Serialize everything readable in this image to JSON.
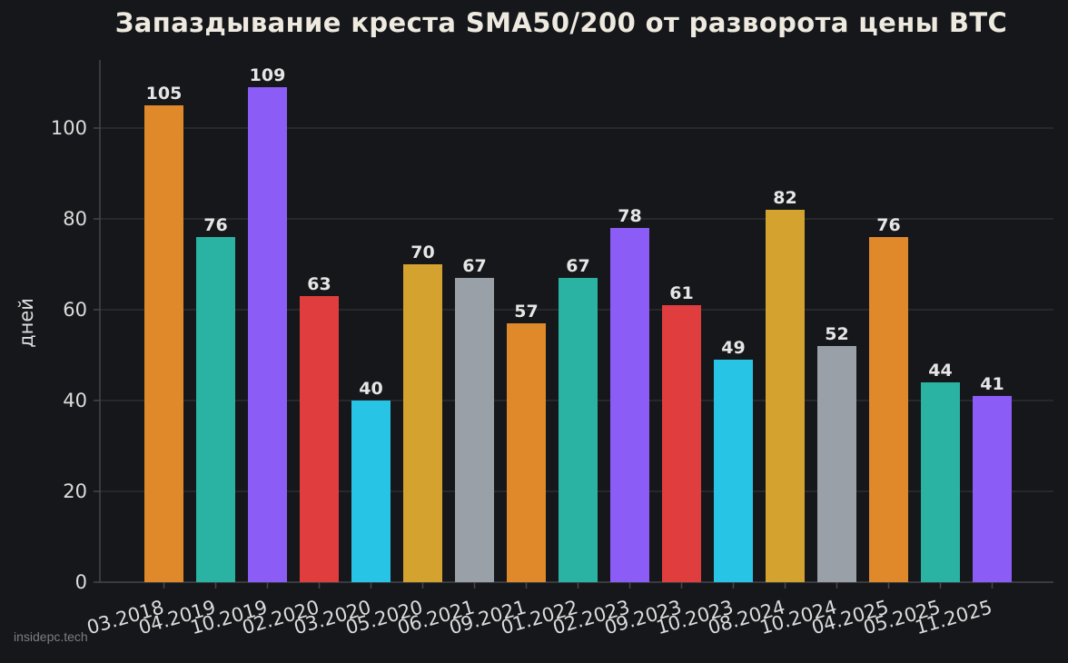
{
  "chart_data": {
    "type": "bar",
    "title": "Запаздывание креста SMA50/200 от разворота цены BTC",
    "xlabel": "",
    "ylabel": "дней",
    "ylim": [
      0,
      115
    ],
    "yticks": [
      0,
      20,
      40,
      60,
      80,
      100
    ],
    "grid": true,
    "categories": [
      "03.2018",
      "04.2019",
      "10.2019",
      "02.2020",
      "03.2020",
      "05.2020",
      "06.2021",
      "09.2021",
      "01.2022",
      "02.2023",
      "09.2023",
      "10.2023",
      "08.2024",
      "10.2024",
      "04.2025",
      "05.2025",
      "11.2025"
    ],
    "values": [
      105,
      76,
      109,
      63,
      40,
      70,
      67,
      57,
      67,
      78,
      61,
      49,
      82,
      52,
      76,
      44,
      41
    ],
    "colors": [
      "#e0892b",
      "#2ab2a2",
      "#8b5cf6",
      "#e03e3e",
      "#27c4e6",
      "#d4a22e",
      "#9aa0a7",
      "#e0892b",
      "#2ab2a2",
      "#8b5cf6",
      "#e03e3e",
      "#27c4e6",
      "#d4a22e",
      "#9aa0a7",
      "#e0892b",
      "#2ab2a2",
      "#8b5cf6"
    ]
  },
  "theme": {
    "background": "#16171b",
    "grid_color": "#2c2e33",
    "axis_color": "#45474d",
    "tick_text_color": "#dcdcdc",
    "label_text_color": "#e6e6e6"
  },
  "watermark": "insidepc.tech"
}
